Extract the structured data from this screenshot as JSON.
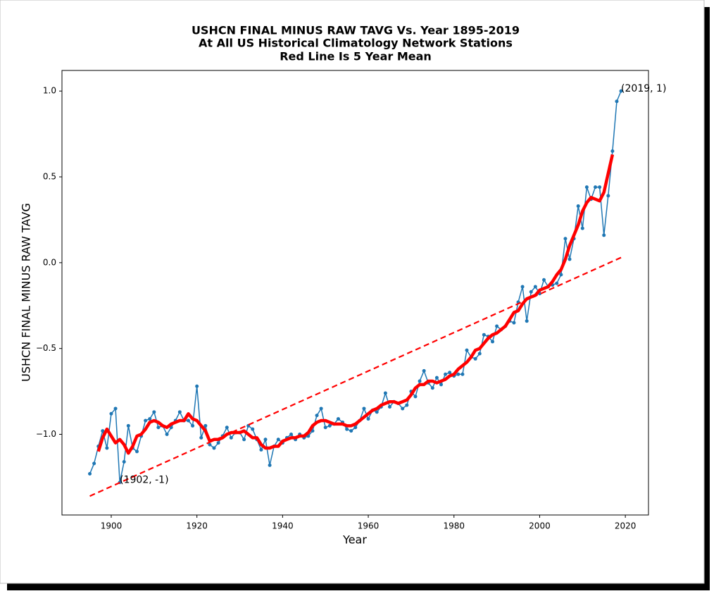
{
  "chart_data": {
    "type": "line",
    "title": [
      "USHCN FINAL MINUS RAW TAVG Vs. Year 1895-2019",
      "At All US Historical Climatology Network Stations",
      "Red Line Is 5 Year Mean"
    ],
    "xlabel": "Year",
    "ylabel": "USHCN FINAL MINUS RAW TAVG",
    "x": [
      1895,
      1896,
      1897,
      1898,
      1899,
      1900,
      1901,
      1902,
      1903,
      1904,
      1905,
      1906,
      1907,
      1908,
      1909,
      1910,
      1911,
      1912,
      1913,
      1914,
      1915,
      1916,
      1917,
      1918,
      1919,
      1920,
      1921,
      1922,
      1923,
      1924,
      1925,
      1926,
      1927,
      1928,
      1929,
      1930,
      1931,
      1932,
      1933,
      1934,
      1935,
      1936,
      1937,
      1938,
      1939,
      1940,
      1941,
      1942,
      1943,
      1944,
      1945,
      1946,
      1947,
      1948,
      1949,
      1950,
      1951,
      1952,
      1953,
      1954,
      1955,
      1956,
      1957,
      1958,
      1959,
      1960,
      1961,
      1962,
      1963,
      1964,
      1965,
      1966,
      1967,
      1968,
      1969,
      1970,
      1971,
      1972,
      1973,
      1974,
      1975,
      1976,
      1977,
      1978,
      1979,
      1980,
      1981,
      1982,
      1983,
      1984,
      1985,
      1986,
      1987,
      1988,
      1989,
      1990,
      1991,
      1992,
      1993,
      1994,
      1995,
      1996,
      1997,
      1998,
      1999,
      2000,
      2001,
      2002,
      2003,
      2004,
      2005,
      2006,
      2007,
      2008,
      2009,
      2010,
      2011,
      2012,
      2013,
      2014,
      2015,
      2016,
      2017,
      2018,
      2019
    ],
    "series": [
      {
        "color": "#1f77b4",
        "linewidth": 1.5,
        "marker": true,
        "values": [
          -1.23,
          -1.17,
          -1.07,
          -0.98,
          -1.08,
          -0.88,
          -0.85,
          -1.28,
          -1.16,
          -0.95,
          -1.08,
          -1.1,
          -1.01,
          -0.92,
          -0.91,
          -0.87,
          -0.96,
          -0.95,
          -1.0,
          -0.96,
          -0.92,
          -0.87,
          -0.92,
          -0.92,
          -0.95,
          -0.72,
          -1.02,
          -0.95,
          -1.06,
          -1.08,
          -1.05,
          -1.01,
          -0.96,
          -1.02,
          -0.99,
          -0.99,
          -1.03,
          -0.95,
          -0.97,
          -1.03,
          -1.09,
          -1.03,
          -1.18,
          -1.07,
          -1.03,
          -1.05,
          -1.02,
          -1.0,
          -1.03,
          -1.0,
          -1.02,
          -1.01,
          -0.98,
          -0.89,
          -0.85,
          -0.96,
          -0.95,
          -0.94,
          -0.91,
          -0.93,
          -0.97,
          -0.98,
          -0.96,
          -0.92,
          -0.85,
          -0.91,
          -0.86,
          -0.87,
          -0.84,
          -0.76,
          -0.84,
          -0.81,
          -0.82,
          -0.85,
          -0.83,
          -0.75,
          -0.78,
          -0.69,
          -0.63,
          -0.7,
          -0.73,
          -0.67,
          -0.71,
          -0.65,
          -0.64,
          -0.66,
          -0.65,
          -0.65,
          -0.51,
          -0.55,
          -0.56,
          -0.53,
          -0.42,
          -0.43,
          -0.46,
          -0.37,
          -0.39,
          -0.37,
          -0.34,
          -0.35,
          -0.23,
          -0.14,
          -0.34,
          -0.17,
          -0.14,
          -0.18,
          -0.1,
          -0.14,
          -0.13,
          -0.12,
          -0.07,
          0.14,
          0.02,
          0.14,
          0.33,
          0.2,
          0.44,
          0.37,
          0.44,
          0.44,
          0.16,
          0.39,
          0.65,
          0.94,
          1.0
        ]
      },
      {
        "color": "#ff0000",
        "linewidth": 4.5,
        "marker": false,
        "values": [
          null,
          null,
          -1.1,
          -1.02,
          -0.97,
          -1.01,
          -1.05,
          -1.03,
          -1.06,
          -1.11,
          -1.07,
          -1.01,
          -1.0,
          -0.97,
          -0.93,
          -0.92,
          -0.93,
          -0.95,
          -0.96,
          -0.94,
          -0.93,
          -0.92,
          -0.92,
          -0.88,
          -0.91,
          -0.92,
          -0.95,
          -0.98,
          -1.04,
          -1.03,
          -1.03,
          -1.02,
          -1.0,
          -0.99,
          -0.99,
          -0.99,
          -0.98,
          -1.0,
          -1.02,
          -1.02,
          -1.06,
          -1.08,
          -1.08,
          -1.07,
          -1.07,
          -1.04,
          -1.03,
          -1.02,
          -1.02,
          -1.01,
          -1.01,
          -0.99,
          -0.95,
          -0.93,
          -0.92,
          -0.92,
          -0.93,
          -0.94,
          -0.94,
          -0.94,
          -0.95,
          -0.95,
          -0.94,
          -0.92,
          -0.9,
          -0.88,
          -0.86,
          -0.85,
          -0.83,
          -0.82,
          -0.81,
          -0.81,
          -0.82,
          -0.81,
          -0.8,
          -0.77,
          -0.73,
          -0.71,
          -0.71,
          -0.69,
          -0.69,
          -0.7,
          -0.69,
          -0.68,
          -0.66,
          -0.65,
          -0.62,
          -0.6,
          -0.58,
          -0.55,
          -0.51,
          -0.5,
          -0.47,
          -0.44,
          -0.42,
          -0.41,
          -0.39,
          -0.37,
          -0.33,
          -0.29,
          -0.28,
          -0.24,
          -0.21,
          -0.2,
          -0.19,
          -0.16,
          -0.15,
          -0.14,
          -0.11,
          -0.07,
          -0.04,
          0.02,
          0.1,
          0.16,
          0.22,
          0.3,
          0.35,
          0.38,
          0.37,
          0.36,
          0.41,
          0.52,
          0.63,
          null,
          null
        ]
      },
      {
        "color": "#ff0000",
        "linewidth": 2.2,
        "marker": false,
        "dashed": true,
        "x": [
          1895,
          2019
        ],
        "values": [
          -1.36,
          0.03
        ]
      }
    ],
    "annotations": [
      {
        "text": "(1902, -1)",
        "x": 1902,
        "y": -1.28
      },
      {
        "text": "(2019, 1)",
        "x": 2019,
        "y": 1.0
      }
    ],
    "xlim": [
      1888.5,
      2025.4
    ],
    "ylim": [
      -1.47,
      1.12
    ],
    "xticks": [
      1900,
      1920,
      1940,
      1960,
      1980,
      2000,
      2020
    ],
    "yticks": [
      {
        "value": -1.0,
        "label": "−1.0"
      },
      {
        "value": -0.5,
        "label": "−0.5"
      },
      {
        "value": 0.0,
        "label": "0.0"
      },
      {
        "value": 0.5,
        "label": "0.5"
      },
      {
        "value": 1.0,
        "label": "1.0"
      }
    ],
    "grid": false
  }
}
